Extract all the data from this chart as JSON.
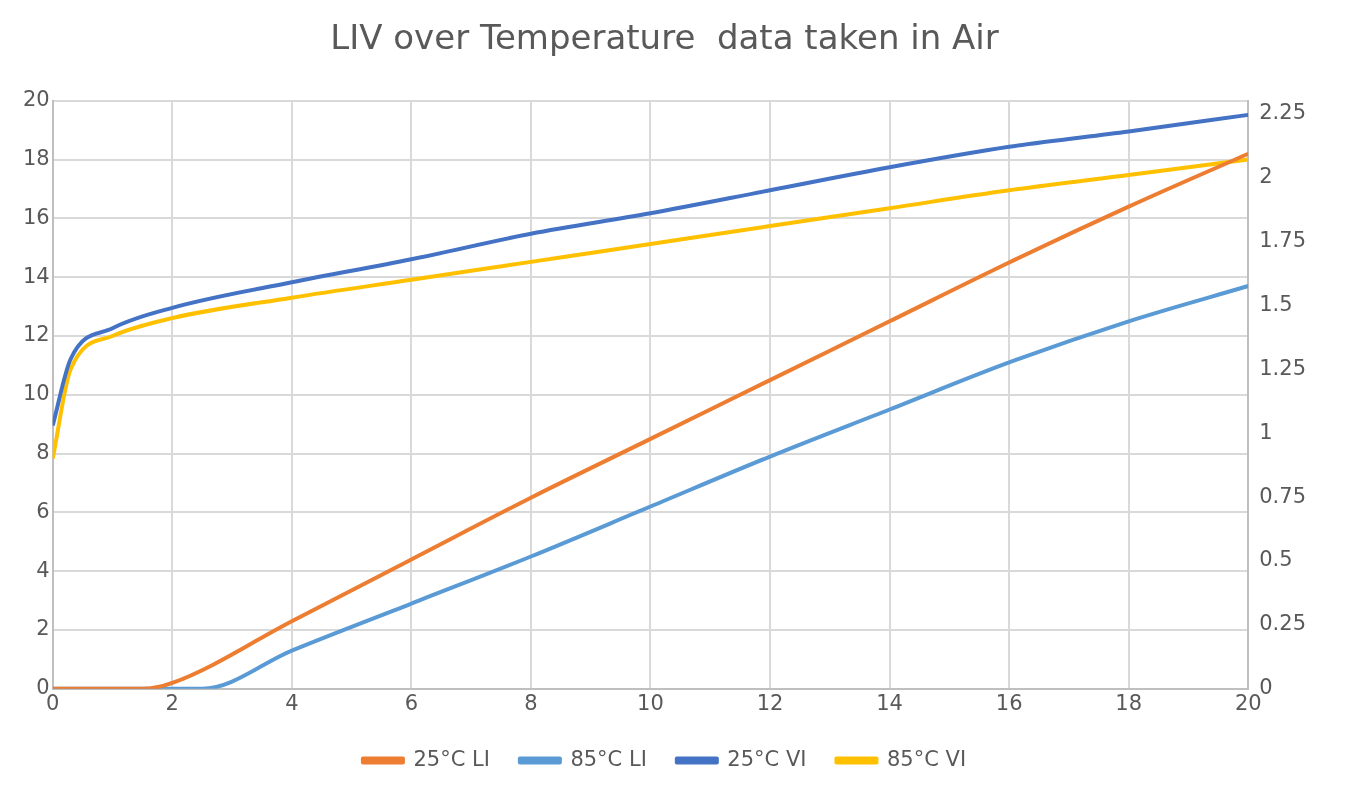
{
  "chart_data": {
    "type": "line",
    "title": "LIV over Temperature  data taken in Air",
    "xlim": [
      0,
      20
    ],
    "xticks": [
      0,
      2,
      4,
      6,
      8,
      10,
      12,
      14,
      16,
      18,
      20
    ],
    "ylim": [
      0,
      20
    ],
    "yticks": [
      0,
      2,
      4,
      6,
      8,
      10,
      12,
      14,
      16,
      18,
      20
    ],
    "y2lim": [
      0,
      2.3
    ],
    "y2ticks": [
      0,
      0.25,
      0.5,
      0.75,
      1,
      1.25,
      1.5,
      1.75,
      2,
      2.25
    ],
    "grid": true,
    "legend": "bottom",
    "marker": "none",
    "line_style": "solid",
    "series": [
      {
        "name": "25°C LI",
        "color": "#ed7d31",
        "x": [
          0,
          1.5,
          2,
          4,
          6,
          8,
          10,
          12,
          14,
          16,
          18,
          20
        ],
        "values": [
          0,
          0,
          0.2,
          2.3,
          4.4,
          6.5,
          8.5,
          10.5,
          12.5,
          14.5,
          16.4,
          18.2
        ]
      },
      {
        "name": "85°C LI",
        "color": "#5b9bd5",
        "x": [
          0,
          2.5,
          4,
          6,
          8,
          10,
          12,
          14,
          16,
          18,
          20
        ],
        "values": [
          0,
          0,
          1.3,
          2.9,
          4.5,
          6.2,
          7.9,
          9.5,
          11.1,
          12.5,
          13.7
        ]
      },
      {
        "name": "25°C VI",
        "color": "#4472c4",
        "axis": "y2",
        "x": [
          0,
          0.3,
          1,
          2,
          4,
          6,
          8,
          10,
          12,
          14,
          16,
          18,
          20
        ],
        "values": [
          1.03,
          1.29,
          1.41,
          1.49,
          1.59,
          1.68,
          1.78,
          1.86,
          1.95,
          2.04,
          2.12,
          2.18,
          2.245
        ]
      },
      {
        "name": "85°C VI",
        "color": "#ffc000",
        "axis": "y2",
        "x": [
          0,
          0.3,
          1,
          2,
          4,
          6,
          8,
          10,
          12,
          14,
          16,
          18,
          20
        ],
        "values": [
          0.9,
          1.25,
          1.38,
          1.45,
          1.53,
          1.6,
          1.67,
          1.74,
          1.81,
          1.88,
          1.95,
          2.01,
          2.07
        ]
      }
    ]
  }
}
